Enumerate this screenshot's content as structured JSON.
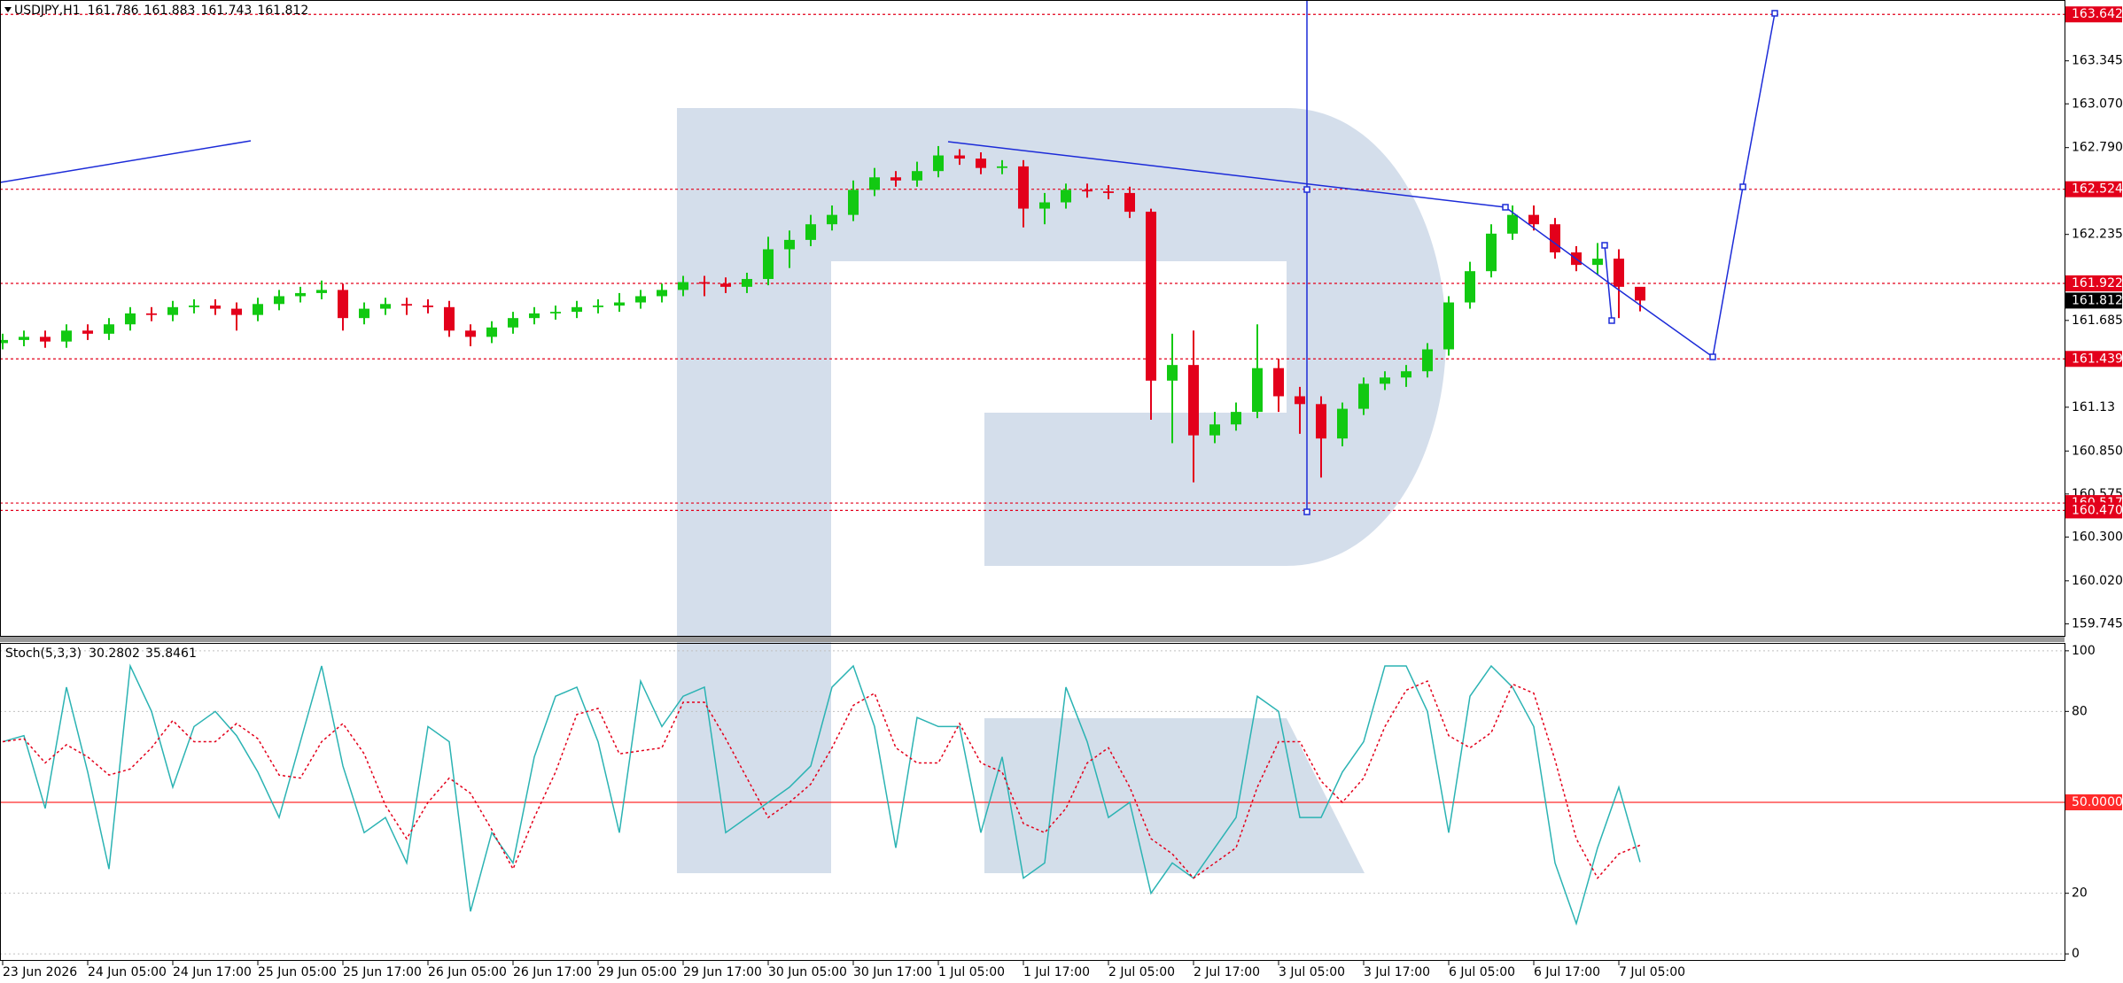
{
  "chart_data": [
    {
      "type": "candlestick",
      "title": "USDJPY,H1",
      "title_values": [
        161.786,
        161.883,
        161.743,
        161.812
      ],
      "categories": [
        "23 Jun 2026",
        null,
        null,
        null,
        "24 Jun 05:00",
        null,
        null,
        null,
        "24 Jun 17:00",
        null,
        null,
        null,
        "25 Jun 05:00",
        null,
        null,
        null,
        "25 Jun 17:00",
        null,
        null,
        null,
        "26 Jun 05:00",
        null,
        null,
        null,
        "26 Jun 17:00",
        null,
        null,
        null,
        "29 Jun 05:00",
        null,
        null,
        null,
        "29 Jun 17:00",
        null,
        null,
        null,
        "30 Jun 05:00",
        null,
        null,
        null,
        "30 Jun 17:00",
        null,
        null,
        null,
        "1 Jul 05:00",
        null,
        null,
        null,
        "1 Jul 17:00",
        null,
        null,
        null,
        "2 Jul 05:00",
        null,
        null,
        null,
        "2 Jul 17:00",
        null,
        null,
        null,
        "3 Jul 05:00",
        null,
        null,
        null,
        "3 Jul 17:00",
        null,
        null,
        null,
        "6 Jul 05:00",
        null,
        null,
        null,
        "6 Jul 17:00",
        null,
        null,
        null,
        "7 Jul 05:00",
        null
      ],
      "open": [
        161.54,
        161.56,
        161.58,
        161.55,
        161.62,
        161.6,
        161.66,
        161.73,
        161.72,
        161.77,
        161.78,
        161.76,
        161.72,
        161.79,
        161.84,
        161.86,
        161.88,
        161.7,
        161.76,
        161.79,
        161.78,
        161.77,
        161.62,
        161.58,
        161.64,
        161.7,
        161.73,
        161.74,
        161.77,
        161.78,
        161.8,
        161.84,
        161.88,
        161.93,
        161.92,
        161.9,
        161.95,
        162.14,
        162.2,
        162.3,
        162.36,
        162.52,
        162.6,
        162.58,
        162.64,
        162.74,
        162.72,
        162.66,
        162.67,
        162.4,
        162.44,
        162.52,
        162.51,
        162.5,
        162.38,
        161.3,
        161.4,
        160.95,
        161.02,
        161.1,
        161.38,
        161.2,
        161.15,
        160.93,
        161.12,
        161.28,
        161.32,
        161.36,
        161.5,
        161.8,
        162.0,
        162.24,
        162.36,
        162.3,
        162.12,
        162.04,
        162.08,
        161.9
      ],
      "high": [
        161.6,
        161.62,
        161.62,
        161.66,
        161.66,
        161.7,
        161.77,
        161.77,
        161.81,
        161.82,
        161.82,
        161.8,
        161.83,
        161.88,
        161.9,
        161.94,
        161.92,
        161.8,
        161.83,
        161.83,
        161.82,
        161.81,
        161.66,
        161.68,
        161.74,
        161.77,
        161.78,
        161.81,
        161.82,
        161.86,
        161.88,
        161.92,
        161.97,
        161.97,
        161.96,
        161.99,
        162.22,
        162.26,
        162.36,
        162.42,
        162.58,
        162.66,
        162.64,
        162.7,
        162.8,
        162.78,
        162.76,
        162.71,
        162.71,
        162.5,
        162.56,
        162.56,
        162.55,
        162.54,
        162.4,
        161.6,
        161.62,
        161.1,
        161.16,
        161.66,
        161.44,
        161.26,
        161.2,
        161.16,
        161.32,
        161.36,
        161.4,
        161.54,
        161.84,
        162.06,
        162.3,
        162.42,
        162.42,
        162.34,
        162.16,
        162.18,
        162.14,
        161.883
      ],
      "low": [
        161.5,
        161.52,
        161.51,
        161.51,
        161.56,
        161.56,
        161.62,
        161.68,
        161.68,
        161.73,
        161.72,
        161.62,
        161.68,
        161.75,
        161.8,
        161.82,
        161.62,
        161.66,
        161.72,
        161.72,
        161.73,
        161.58,
        161.52,
        161.54,
        161.6,
        161.66,
        161.69,
        161.7,
        161.73,
        161.74,
        161.76,
        161.8,
        161.84,
        161.84,
        161.86,
        161.86,
        161.91,
        162.02,
        162.16,
        162.26,
        162.32,
        162.48,
        162.54,
        162.54,
        162.6,
        162.68,
        162.62,
        162.62,
        162.28,
        162.3,
        162.4,
        162.47,
        162.46,
        162.34,
        161.05,
        160.9,
        160.65,
        160.9,
        160.98,
        161.06,
        161.1,
        160.96,
        160.68,
        160.88,
        161.08,
        161.24,
        161.26,
        161.32,
        161.46,
        161.76,
        161.96,
        162.2,
        162.26,
        162.08,
        162.0,
        161.98,
        161.7,
        161.743
      ],
      "close": [
        161.56,
        161.58,
        161.55,
        161.62,
        161.6,
        161.66,
        161.73,
        161.72,
        161.77,
        161.78,
        161.76,
        161.72,
        161.79,
        161.84,
        161.86,
        161.88,
        161.7,
        161.76,
        161.79,
        161.78,
        161.77,
        161.62,
        161.58,
        161.64,
        161.7,
        161.73,
        161.74,
        161.77,
        161.78,
        161.8,
        161.84,
        161.88,
        161.93,
        161.92,
        161.9,
        161.95,
        162.14,
        162.2,
        162.3,
        162.36,
        162.52,
        162.6,
        162.58,
        162.64,
        162.74,
        162.72,
        162.66,
        162.67,
        162.4,
        162.44,
        162.52,
        162.51,
        162.5,
        162.38,
        161.3,
        161.4,
        160.95,
        161.02,
        161.1,
        161.38,
        161.2,
        161.15,
        160.93,
        161.12,
        161.28,
        161.32,
        161.36,
        161.5,
        161.8,
        162.0,
        162.24,
        162.36,
        162.3,
        162.12,
        162.04,
        162.08,
        161.9,
        161.812
      ],
      "up_color": "#12c912",
      "down_color": "#e3001b",
      "ylim": [
        159.668,
        163.734
      ],
      "yticks": [
        163.345,
        {
          "value": 163.07,
          "label": "163.070"
        },
        {
          "value": 162.79,
          "label": "162.790"
        },
        162.235,
        161.685,
        161.13,
        {
          "value": 160.85,
          "label": "160.850"
        },
        160.575,
        {
          "value": 160.3,
          "label": "160.300"
        },
        {
          "value": 160.02,
          "label": "160.020"
        },
        159.745
      ],
      "levels": [
        163.642,
        162.524,
        161.922,
        161.439,
        160.517,
        {
          "value": 160.47,
          "label": "160.470"
        }
      ],
      "level_color": "#e3001b",
      "current_price": 161.812
    },
    {
      "type": "line",
      "title": "Stoch(5,3,3)",
      "title_values": [
        30.2802,
        35.8461
      ],
      "series": [
        {
          "name": "Main",
          "color": "#2bb3b3",
          "style": "solid",
          "values": [
            70,
            72,
            48,
            88,
            60,
            28,
            95,
            80,
            55,
            75,
            80,
            72,
            60,
            45,
            70,
            95,
            62,
            40,
            45,
            30,
            75,
            70,
            14,
            40,
            30,
            65,
            85,
            88,
            70,
            40,
            90,
            75,
            85,
            88,
            40,
            45,
            50,
            55,
            62,
            88,
            95,
            75,
            35,
            78,
            75,
            75,
            40,
            65,
            25,
            30,
            88,
            70,
            45,
            50,
            20,
            30,
            25,
            35,
            45,
            85,
            80,
            45,
            45,
            60,
            70,
            95,
            95,
            80,
            40,
            85,
            95,
            88,
            75,
            30,
            10,
            35,
            55,
            30.2802
          ]
        },
        {
          "name": "Signal",
          "color": "#e3001b",
          "style": "dotted",
          "values": [
            70,
            71,
            63,
            69,
            65,
            59,
            61,
            68,
            77,
            70,
            70,
            76,
            71,
            59,
            58,
            70,
            76,
            66,
            49,
            38,
            50,
            58,
            53,
            41,
            28,
            45,
            60,
            79,
            81,
            66,
            67,
            68,
            83,
            83,
            71,
            58,
            45,
            50,
            56,
            68,
            82,
            86,
            68,
            63,
            63,
            76,
            63,
            60,
            43,
            40,
            48,
            63,
            68,
            55,
            38,
            33,
            25,
            30,
            35,
            55,
            70,
            70,
            57,
            50,
            58,
            75,
            87,
            90,
            72,
            68,
            73,
            89,
            86,
            64,
            38,
            25,
            33,
            35.8461
          ]
        }
      ],
      "ylim": [
        -2.3,
        102.3
      ],
      "yticks": [
        100,
        80,
        20,
        0
      ],
      "grid": true,
      "level": {
        "value": 50,
        "label": "50.0000"
      },
      "level_color": "#ff2a2a"
    }
  ]
}
